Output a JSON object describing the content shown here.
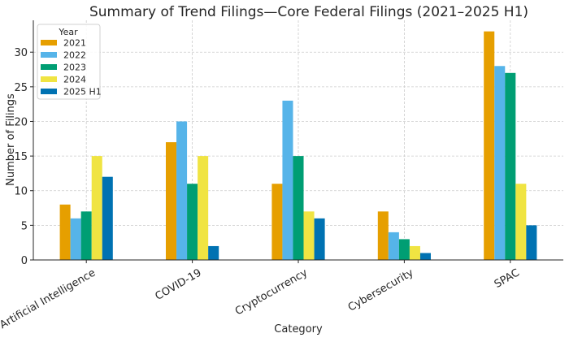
{
  "chart_data": {
    "type": "bar",
    "title": "Summary of Trend Filings—Core Federal Filings (2021–2025 H1)",
    "xlabel": "Category",
    "ylabel": "Number of Filings",
    "categories": [
      "Artificial Intelligence",
      "COVID-19",
      "Cryptocurrency",
      "Cybersecurity",
      "SPAC"
    ],
    "series": [
      {
        "name": "2021",
        "color": "#E69F00",
        "values": [
          8,
          17,
          11,
          7,
          33
        ]
      },
      {
        "name": "2022",
        "color": "#56B4E9",
        "values": [
          6,
          20,
          23,
          4,
          28
        ]
      },
      {
        "name": "2023",
        "color": "#009E73",
        "values": [
          7,
          11,
          15,
          3,
          27
        ]
      },
      {
        "name": "2024",
        "color": "#F0E442",
        "values": [
          15,
          15,
          7,
          2,
          11
        ]
      },
      {
        "name": "2025 H1",
        "color": "#0072B2",
        "values": [
          12,
          2,
          6,
          1,
          5
        ]
      }
    ],
    "ylim": [
      0,
      34.6
    ],
    "yticks": [
      0,
      5,
      10,
      15,
      20,
      25,
      30
    ],
    "grid": true,
    "legend": {
      "title": "Year",
      "placement": "top-left"
    }
  }
}
